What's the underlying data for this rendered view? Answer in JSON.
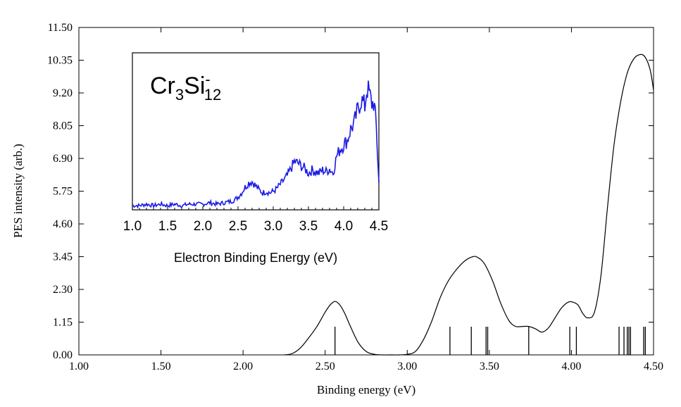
{
  "chart_data": [
    {
      "type": "line",
      "xlabel": "Binding energy (eV)",
      "ylabel": "PES intensity (arb.)",
      "xlim": [
        1.0,
        4.5
      ],
      "ylim": [
        0.0,
        11.5
      ],
      "xticks": [
        "1.00",
        "1.50",
        "2.00",
        "2.50",
        "3.00",
        "3.50",
        "4.00",
        "4.50"
      ],
      "yticks": [
        "0.00",
        "1.15",
        "2.30",
        "3.45",
        "4.60",
        "5.75",
        "6.90",
        "8.05",
        "9.20",
        "10.35",
        "11.50"
      ],
      "x": [
        2.25,
        2.3,
        2.35,
        2.4,
        2.45,
        2.5,
        2.53,
        2.56,
        2.59,
        2.62,
        2.65,
        2.7,
        2.75,
        2.8,
        2.85,
        2.9,
        2.95,
        3.0,
        3.05,
        3.1,
        3.15,
        3.2,
        3.25,
        3.3,
        3.35,
        3.4,
        3.43,
        3.47,
        3.52,
        3.57,
        3.62,
        3.66,
        3.7,
        3.74,
        3.78,
        3.82,
        3.86,
        3.9,
        3.94,
        3.98,
        4.01,
        4.04,
        4.07,
        4.1,
        4.14,
        4.18,
        4.22,
        4.26,
        4.3,
        4.34,
        4.38,
        4.42,
        4.45,
        4.48,
        4.5
      ],
      "y": [
        0.0,
        0.05,
        0.25,
        0.6,
        1.0,
        1.5,
        1.75,
        1.88,
        1.75,
        1.45,
        1.05,
        0.45,
        0.12,
        0.02,
        0.0,
        0.0,
        0.0,
        0.02,
        0.12,
        0.55,
        1.2,
        2.0,
        2.6,
        3.0,
        3.3,
        3.45,
        3.42,
        3.2,
        2.6,
        1.8,
        1.2,
        1.0,
        1.0,
        1.0,
        0.92,
        0.8,
        0.95,
        1.3,
        1.65,
        1.85,
        1.85,
        1.75,
        1.45,
        1.3,
        1.5,
        2.8,
        5.2,
        7.4,
        8.9,
        9.9,
        10.4,
        10.55,
        10.45,
        10.0,
        9.3
      ],
      "sticks": [
        2.56,
        3.26,
        3.39,
        3.48,
        3.49,
        3.74,
        3.99,
        4.03,
        4.29,
        4.32,
        4.34,
        4.35,
        4.36,
        4.44,
        4.45
      ],
      "grid": false
    },
    {
      "type": "line",
      "title": "Cr3Si12",
      "xlabel": "Electron Binding Energy (eV)",
      "xlim": [
        1.0,
        4.5
      ],
      "ylim": [
        0,
        100
      ],
      "xticks": [
        "1.0",
        "1.5",
        "2.0",
        "2.5",
        "3.0",
        "3.5",
        "4.0",
        "4.5"
      ],
      "color": "#1a1ae6",
      "x": [
        1.0,
        1.1,
        1.2,
        1.3,
        1.4,
        1.5,
        1.6,
        1.7,
        1.8,
        1.9,
        2.0,
        2.1,
        2.2,
        2.3,
        2.4,
        2.45,
        2.5,
        2.55,
        2.6,
        2.65,
        2.7,
        2.75,
        2.8,
        2.85,
        2.9,
        2.95,
        3.0,
        3.05,
        3.1,
        3.15,
        3.2,
        3.25,
        3.3,
        3.35,
        3.4,
        3.45,
        3.5,
        3.55,
        3.6,
        3.65,
        3.7,
        3.75,
        3.8,
        3.85,
        3.9,
        3.95,
        4.0,
        4.05,
        4.1,
        4.15,
        4.2,
        4.25,
        4.3,
        4.33,
        4.36,
        4.4,
        4.43,
        4.46,
        4.5
      ],
      "y": [
        2,
        2,
        3,
        2,
        3,
        2,
        3,
        2,
        3,
        3,
        3,
        4,
        3,
        4,
        5,
        6,
        8,
        11,
        15,
        18,
        19,
        16,
        13,
        11,
        12,
        11,
        12,
        14,
        17,
        20,
        23,
        28,
        33,
        32,
        30,
        28,
        25,
        27,
        26,
        25,
        27,
        26,
        28,
        25,
        37,
        42,
        45,
        48,
        56,
        60,
        70,
        77,
        72,
        85,
        82,
        74,
        75,
        60,
        18
      ],
      "grid": false
    }
  ],
  "inset": {
    "formula_base": "Cr",
    "formula_sub1": "3",
    "formula_el2": "Si",
    "formula_sub2": "12",
    "formula_sup": "-"
  }
}
